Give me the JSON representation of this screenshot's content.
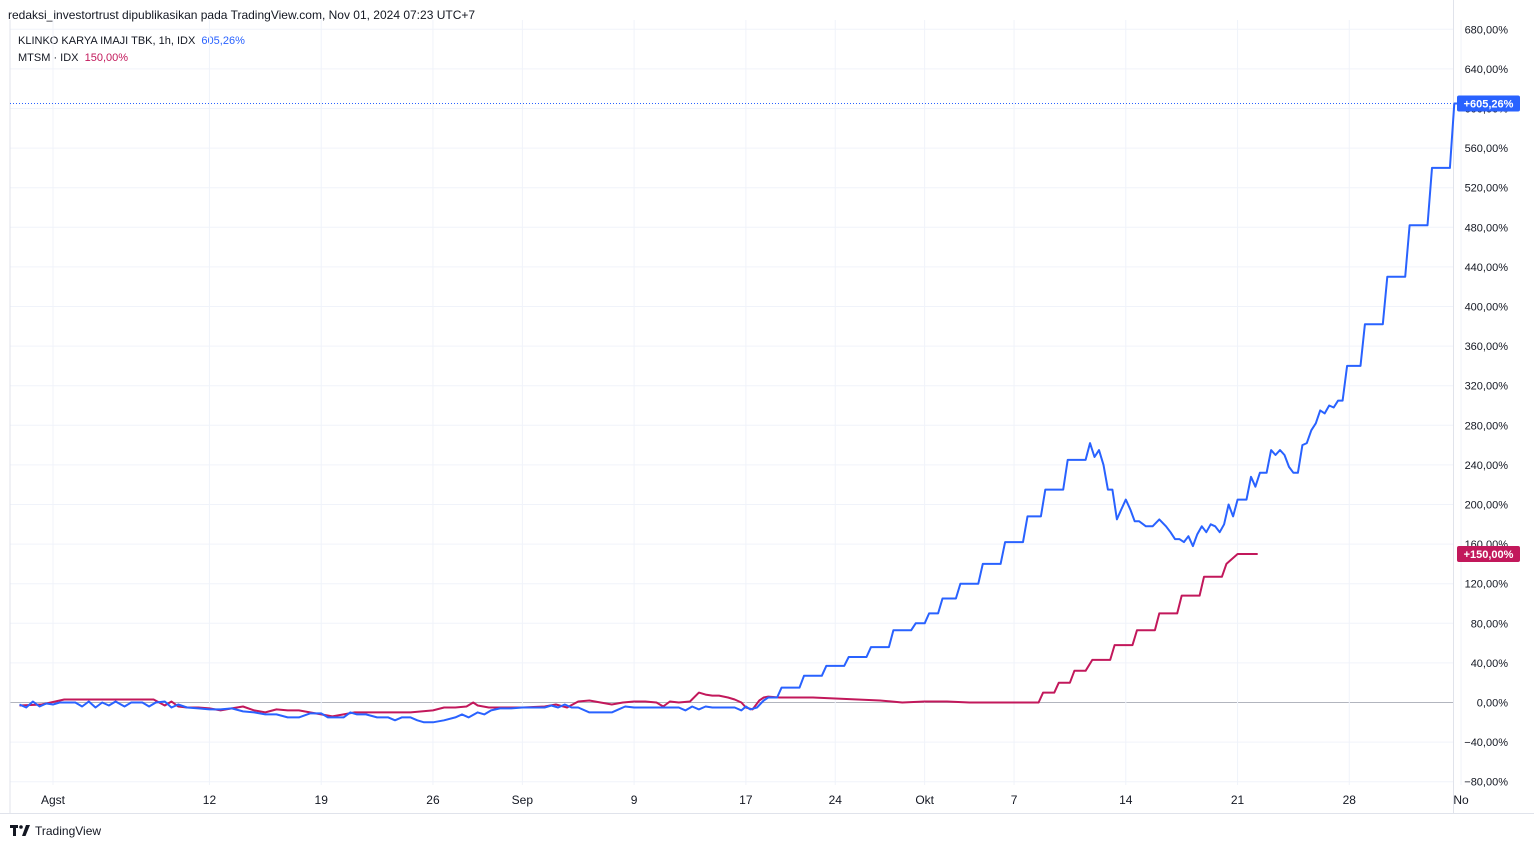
{
  "header": "redaksi_investortrust dipublikasikan pada TradingView.com, Nov 01, 2024 07:23 UTC+7",
  "legend": [
    {
      "name": "KLINKO KARYA IMAJI TBK, 1h, IDX",
      "value": "605,26%",
      "color": "#2962ff"
    },
    {
      "name": "MTSM · IDX",
      "value": "150,00%",
      "color": "#c2185b"
    }
  ],
  "footer": {
    "brand": "TradingView",
    "icon": "tradingview-logo-icon"
  },
  "colors": {
    "blue": "#2962ff",
    "magenta": "#c2185b",
    "grid": "#f0f3fa",
    "zero": "#b2b5be"
  },
  "chart_data": {
    "type": "line",
    "x_unit": "trading day index (0 = Aug 1, 2024)",
    "y_unit": "percent change",
    "ylim": [
      -80,
      680
    ],
    "yticks": [
      "680,00%",
      "640,00%",
      "600,00%",
      "560,00%",
      "520,00%",
      "480,00%",
      "440,00%",
      "400,00%",
      "360,00%",
      "320,00%",
      "280,00%",
      "240,00%",
      "200,00%",
      "160,00%",
      "120,00%",
      "80,00%",
      "40,00%",
      "0,00%",
      "−40,00%",
      "−80,00%"
    ],
    "ytick_values": [
      680,
      640,
      600,
      560,
      520,
      480,
      440,
      400,
      360,
      320,
      280,
      240,
      200,
      160,
      120,
      80,
      40,
      0,
      -40,
      -80
    ],
    "xticks": [
      {
        "label": "Agst",
        "day": 0
      },
      {
        "label": "12",
        "day": 7
      },
      {
        "label": "19",
        "day": 12
      },
      {
        "label": "26",
        "day": 17
      },
      {
        "label": "Sep",
        "day": 21
      },
      {
        "label": "9",
        "day": 26
      },
      {
        "label": "17",
        "day": 31
      },
      {
        "label": "24",
        "day": 35
      },
      {
        "label": "Okt",
        "day": 39
      },
      {
        "label": "7",
        "day": 43
      },
      {
        "label": "14",
        "day": 48
      },
      {
        "label": "21",
        "day": 53
      },
      {
        "label": "28",
        "day": 58
      },
      {
        "label": "No",
        "day": 63
      }
    ],
    "grid": true,
    "series": [
      {
        "name": "KLINKO KARYA IMAJI TBK, 1h, IDX",
        "color": "#2962ff",
        "last_value_label": "+605,26%",
        "points": [
          [
            -1.5,
            -2
          ],
          [
            -1.2,
            -5
          ],
          [
            -0.9,
            1
          ],
          [
            -0.6,
            -4
          ],
          [
            -0.3,
            -1
          ],
          [
            0,
            -2
          ],
          [
            0.3,
            0
          ],
          [
            1,
            0
          ],
          [
            1.3,
            -4
          ],
          [
            1.6,
            1
          ],
          [
            1.9,
            -5
          ],
          [
            2.2,
            0
          ],
          [
            2.5,
            -3
          ],
          [
            2.8,
            1
          ],
          [
            3.2,
            -4
          ],
          [
            3.5,
            0
          ],
          [
            4,
            0
          ],
          [
            4.3,
            -4
          ],
          [
            4.6,
            0
          ],
          [
            5,
            1
          ],
          [
            5.3,
            -5
          ],
          [
            5.6,
            -2
          ],
          [
            6,
            -5
          ],
          [
            6.5,
            -6
          ],
          [
            7,
            -7
          ],
          [
            7.5,
            -7
          ],
          [
            8,
            -6
          ],
          [
            8.5,
            -9
          ],
          [
            9,
            -10
          ],
          [
            9.5,
            -12
          ],
          [
            10,
            -12
          ],
          [
            10.5,
            -15
          ],
          [
            11,
            -15
          ],
          [
            11.5,
            -11
          ],
          [
            12,
            -11
          ],
          [
            12.3,
            -15
          ],
          [
            12.6,
            -15
          ],
          [
            13,
            -15
          ],
          [
            13.3,
            -10
          ],
          [
            13.6,
            -12
          ],
          [
            14,
            -12
          ],
          [
            14.5,
            -15
          ],
          [
            15,
            -15
          ],
          [
            15.3,
            -18
          ],
          [
            15.6,
            -15
          ],
          [
            16,
            -15
          ],
          [
            16.3,
            -18
          ],
          [
            16.6,
            -20
          ],
          [
            17,
            -20
          ],
          [
            17.5,
            -18
          ],
          [
            18,
            -15
          ],
          [
            18.3,
            -12
          ],
          [
            18.6,
            -15
          ],
          [
            19,
            -10
          ],
          [
            19.3,
            -12
          ],
          [
            19.6,
            -8
          ],
          [
            20,
            -6
          ],
          [
            20.5,
            -6
          ],
          [
            21,
            -5
          ],
          [
            21.5,
            -5
          ],
          [
            22,
            -5
          ],
          [
            22.3,
            -3
          ],
          [
            22.6,
            -5
          ],
          [
            22.9,
            -2
          ],
          [
            23.2,
            -5
          ],
          [
            23.5,
            -5
          ],
          [
            24,
            -10
          ],
          [
            24.5,
            -10
          ],
          [
            25,
            -10
          ],
          [
            25.3,
            -7
          ],
          [
            25.6,
            -4
          ],
          [
            26,
            -5
          ],
          [
            26.5,
            -5
          ],
          [
            27,
            -5
          ],
          [
            27.5,
            -5
          ],
          [
            28,
            -5
          ],
          [
            28.3,
            -8
          ],
          [
            28.6,
            -4
          ],
          [
            28.9,
            -7
          ],
          [
            29.2,
            -4
          ],
          [
            29.5,
            -5
          ],
          [
            30,
            -5
          ],
          [
            30.5,
            -5
          ],
          [
            30.8,
            -8
          ],
          [
            31,
            -4
          ],
          [
            31.2,
            -7
          ],
          [
            31.5,
            -5
          ],
          [
            31.8,
            2
          ],
          [
            32,
            5
          ],
          [
            32.4,
            5
          ],
          [
            32.6,
            15
          ],
          [
            33.4,
            15
          ],
          [
            33.6,
            27
          ],
          [
            34.4,
            27
          ],
          [
            34.6,
            37
          ],
          [
            35.4,
            37
          ],
          [
            35.6,
            46
          ],
          [
            36.4,
            46
          ],
          [
            36.6,
            56
          ],
          [
            37.4,
            56
          ],
          [
            37.6,
            73
          ],
          [
            38.4,
            73
          ],
          [
            38.6,
            80
          ],
          [
            39,
            80
          ],
          [
            39.2,
            90
          ],
          [
            39.6,
            90
          ],
          [
            39.8,
            105
          ],
          [
            40.4,
            105
          ],
          [
            40.6,
            120
          ],
          [
            41.4,
            120
          ],
          [
            41.6,
            140
          ],
          [
            42.4,
            140
          ],
          [
            42.6,
            162
          ],
          [
            43.4,
            162
          ],
          [
            43.6,
            188
          ],
          [
            44.2,
            188
          ],
          [
            44.4,
            215
          ],
          [
            45.2,
            215
          ],
          [
            45.4,
            245
          ],
          [
            46.2,
            245
          ],
          [
            46.4,
            262
          ],
          [
            46.6,
            248
          ],
          [
            46.8,
            255
          ],
          [
            47,
            240
          ],
          [
            47.2,
            215
          ],
          [
            47.4,
            215
          ],
          [
            47.6,
            185
          ],
          [
            47.8,
            195
          ],
          [
            48,
            205
          ],
          [
            48.2,
            195
          ],
          [
            48.4,
            183
          ],
          [
            48.6,
            183
          ],
          [
            48.9,
            178
          ],
          [
            49.2,
            178
          ],
          [
            49.5,
            185
          ],
          [
            49.8,
            178
          ],
          [
            50,
            172
          ],
          [
            50.2,
            165
          ],
          [
            50.4,
            165
          ],
          [
            50.6,
            162
          ],
          [
            50.8,
            168
          ],
          [
            51,
            158
          ],
          [
            51.2,
            170
          ],
          [
            51.4,
            178
          ],
          [
            51.6,
            172
          ],
          [
            51.8,
            180
          ],
          [
            52,
            178
          ],
          [
            52.2,
            172
          ],
          [
            52.4,
            180
          ],
          [
            52.6,
            200
          ],
          [
            52.8,
            188
          ],
          [
            53,
            205
          ],
          [
            53.4,
            205
          ],
          [
            53.6,
            228
          ],
          [
            53.8,
            218
          ],
          [
            54,
            232
          ],
          [
            54.3,
            232
          ],
          [
            54.5,
            255
          ],
          [
            54.7,
            250
          ],
          [
            54.9,
            255
          ],
          [
            55.1,
            250
          ],
          [
            55.3,
            238
          ],
          [
            55.5,
            232
          ],
          [
            55.7,
            232
          ],
          [
            55.9,
            260
          ],
          [
            56.1,
            262
          ],
          [
            56.3,
            275
          ],
          [
            56.5,
            282
          ],
          [
            56.7,
            295
          ],
          [
            56.9,
            292
          ],
          [
            57.1,
            300
          ],
          [
            57.3,
            298
          ],
          [
            57.5,
            305
          ],
          [
            57.7,
            305
          ],
          [
            57.9,
            340
          ],
          [
            58.5,
            340
          ],
          [
            58.7,
            382
          ],
          [
            59.5,
            382
          ],
          [
            59.7,
            430
          ],
          [
            60.5,
            430
          ],
          [
            60.7,
            482
          ],
          [
            61.5,
            482
          ],
          [
            61.7,
            540
          ],
          [
            62.5,
            540
          ],
          [
            62.7,
            605
          ],
          [
            63.5,
            605
          ]
        ]
      },
      {
        "name": "MTSM · IDX",
        "color": "#c2185b",
        "last_value_label": "+150,00%",
        "points": [
          [
            -1.5,
            -3
          ],
          [
            -0.5,
            -2
          ],
          [
            0.5,
            3
          ],
          [
            1,
            3
          ],
          [
            3,
            3
          ],
          [
            4.5,
            3
          ],
          [
            5,
            -3
          ],
          [
            5.3,
            1
          ],
          [
            5.6,
            -4
          ],
          [
            6,
            -5
          ],
          [
            6.5,
            -5
          ],
          [
            7,
            -6
          ],
          [
            7.5,
            -8
          ],
          [
            8,
            -6
          ],
          [
            8.5,
            -4
          ],
          [
            9,
            -8
          ],
          [
            9.5,
            -10
          ],
          [
            10,
            -7
          ],
          [
            10.5,
            -8
          ],
          [
            11,
            -8
          ],
          [
            11.5,
            -10
          ],
          [
            12,
            -12
          ],
          [
            12.5,
            -14
          ],
          [
            13,
            -12
          ],
          [
            13.5,
            -10
          ],
          [
            14,
            -10
          ],
          [
            15,
            -10
          ],
          [
            16,
            -10
          ],
          [
            17,
            -8
          ],
          [
            17.5,
            -5
          ],
          [
            18,
            -5
          ],
          [
            18.5,
            -4
          ],
          [
            18.8,
            0
          ],
          [
            19,
            -3
          ],
          [
            19.5,
            -5
          ],
          [
            20,
            -5
          ],
          [
            21,
            -5
          ],
          [
            22,
            -4
          ],
          [
            22.5,
            -2
          ],
          [
            23,
            -5
          ],
          [
            23.5,
            1
          ],
          [
            24,
            2
          ],
          [
            24.5,
            0
          ],
          [
            25,
            -2
          ],
          [
            25.5,
            0
          ],
          [
            26,
            1
          ],
          [
            26.5,
            1
          ],
          [
            27,
            0
          ],
          [
            27.3,
            -4
          ],
          [
            27.6,
            1
          ],
          [
            28,
            0
          ],
          [
            28.5,
            1
          ],
          [
            28.9,
            10
          ],
          [
            29.2,
            8
          ],
          [
            29.5,
            7
          ],
          [
            29.8,
            7
          ],
          [
            30.2,
            5
          ],
          [
            30.5,
            3
          ],
          [
            30.8,
            0
          ],
          [
            31,
            -5
          ],
          [
            31.3,
            -7
          ],
          [
            31.6,
            2
          ],
          [
            31.8,
            5
          ],
          [
            32,
            6
          ],
          [
            32.5,
            5
          ],
          [
            33,
            5
          ],
          [
            34,
            5
          ],
          [
            35,
            4
          ],
          [
            36,
            3
          ],
          [
            37,
            2
          ],
          [
            38,
            0
          ],
          [
            39,
            1
          ],
          [
            40,
            1
          ],
          [
            41,
            0
          ],
          [
            42,
            0
          ],
          [
            43,
            0
          ],
          [
            44,
            0
          ],
          [
            44.1,
            0
          ],
          [
            44.3,
            10
          ],
          [
            44.8,
            10
          ],
          [
            45,
            20
          ],
          [
            45.5,
            20
          ],
          [
            45.7,
            32
          ],
          [
            46.2,
            32
          ],
          [
            46.5,
            43
          ],
          [
            47.3,
            43
          ],
          [
            47.5,
            58
          ],
          [
            48.3,
            58
          ],
          [
            48.5,
            73
          ],
          [
            49.3,
            73
          ],
          [
            49.5,
            90
          ],
          [
            50.3,
            90
          ],
          [
            50.5,
            108
          ],
          [
            51.3,
            108
          ],
          [
            51.5,
            127
          ],
          [
            52.3,
            127
          ],
          [
            52.5,
            140
          ],
          [
            53,
            150
          ],
          [
            53.9,
            150
          ]
        ]
      }
    ],
    "legend_position": "top-left"
  }
}
